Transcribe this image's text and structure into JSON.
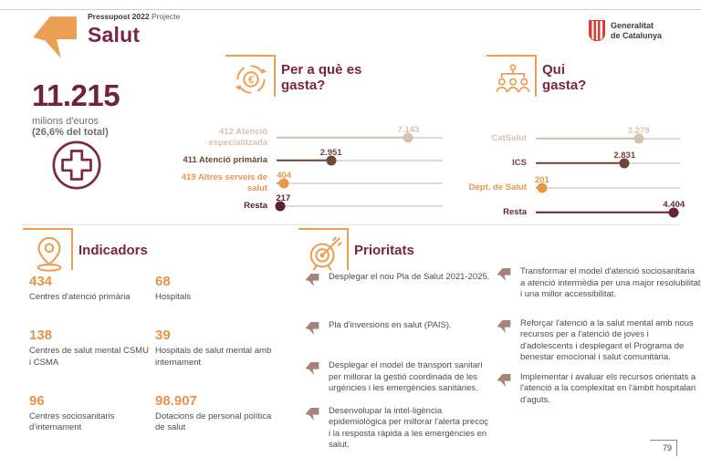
{
  "header": {
    "eyebrow_bold": "Pressupost 2022",
    "eyebrow_regular": "Projecte",
    "title": "Salut"
  },
  "brand": {
    "line1": "Generalitat",
    "line2": "de Catalunya"
  },
  "summary": {
    "amount": "11.215",
    "unit": "milions d'euros",
    "share": "(26,6% del total)"
  },
  "chart_data": [
    {
      "type": "bar",
      "variant": "lollipop-horizontal",
      "title": "Per a què es gasta?",
      "categories": [
        "412 Atenció especialitzada",
        "411 Atenció primària",
        "419 Altres serveis de salut",
        "Resta"
      ],
      "values": [
        7143,
        2951,
        404,
        217
      ],
      "value_labels": [
        "7.143",
        "2.951",
        "404",
        "217"
      ],
      "colors": [
        "#d8c2ae",
        "#6e463a",
        "#e8954e",
        "#5a2033"
      ],
      "xlabel": "",
      "ylabel": "",
      "axis_max": 9000,
      "grid": false,
      "legend": false
    },
    {
      "type": "bar",
      "variant": "lollipop-horizontal",
      "title": "Qui gasta?",
      "categories": [
        "CatSalut",
        "ICS",
        "Dept. de Salut",
        "Resta"
      ],
      "values": [
        3279,
        2831,
        201,
        4404
      ],
      "value_labels": [
        "3.279",
        "2.831",
        "201",
        "4.404"
      ],
      "colors": [
        "#d8c2ae",
        "#6e463a",
        "#e8954e",
        "#622639"
      ],
      "xlabel": "",
      "ylabel": "",
      "axis_max": 4600,
      "grid": false,
      "legend": false
    }
  ],
  "indicators": {
    "title": "Indicadors",
    "items": [
      {
        "value": "434",
        "label": "Centres d'atenció primària"
      },
      {
        "value": "68",
        "label": "Hospitals"
      },
      {
        "value": "138",
        "label": "Centres de salut mental CSMU i CSMA"
      },
      {
        "value": "39",
        "label": "Hospitals de salut mental amb internament"
      },
      {
        "value": "96",
        "label": "Centres sociosanitaris d'internament"
      },
      {
        "value": "98.907",
        "label": "Dotacions de personal política de salut"
      }
    ]
  },
  "priorities": {
    "title": "Prioritats",
    "col1": [
      "Desplegar el nou Pla de Salut 2021-2025.",
      "Pla d'inversions en salut (PAIS).",
      "Desplegar el model de transport sanitari per millorar la gestió coordinada de les urgències i les emergències sanitàries.",
      "Desenvolupar la intel·ligència epidemiològica per millorar l'alerta precoç i la resposta ràpida a les emergències en salut."
    ],
    "col2": [
      "Transformar el model d'atenció sociosanitària a atenció intermèdia per una major resolubilitat i una millor accessibilitat.",
      "Reforçar l'atenció a la salut mental amb nous recursos per a l'atenció de joves i d'adolescents i desplegant el Programa de benestar emocional i salut comunitària.",
      "Implementar i avaluar els recursos orientats a l'atenció a la complexitat en l'àmbit hospitalari d'aguts."
    ]
  },
  "footer": {
    "page": "79"
  },
  "colors": {
    "accent_orange": "#ec9e55",
    "orange_text": "#e8924c",
    "maroon": "#7b2346",
    "dark_wine": "#5a2033",
    "brown": "#6e463a",
    "beige": "#d8c2ae",
    "bullet_mauve": "#a5837a",
    "track_gray": "#dbdbdb",
    "brand_red": "#dd3c33"
  }
}
